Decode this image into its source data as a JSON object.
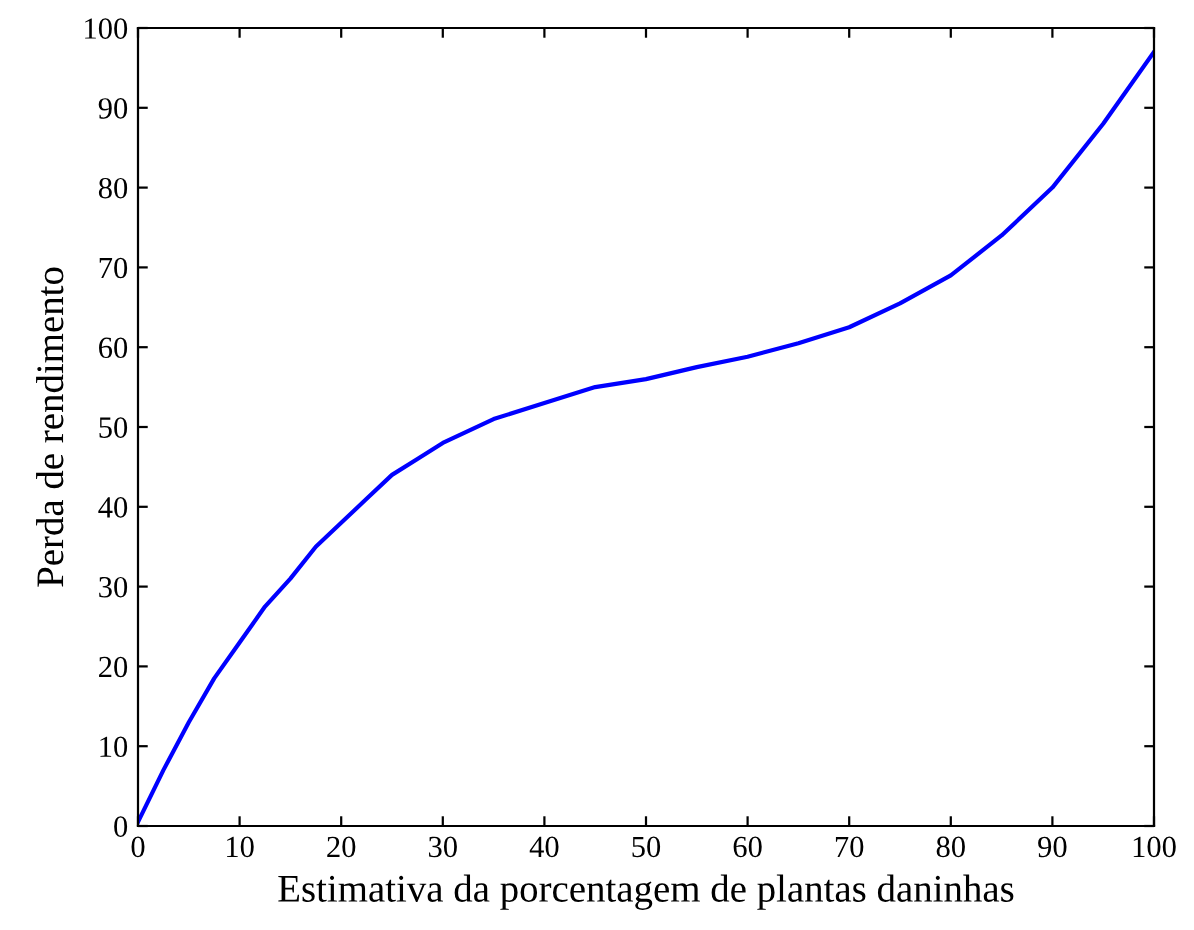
{
  "chart_data": {
    "type": "line",
    "xlabel": "Estimativa da porcentagem de plantas daninhas",
    "ylabel": "Perda de rendimento",
    "x": [
      0,
      2.5,
      5,
      7.5,
      10,
      12.5,
      15,
      17.5,
      20,
      22.5,
      25,
      27.5,
      30,
      35,
      40,
      45,
      50,
      55,
      60,
      65,
      70,
      75,
      80,
      85,
      90,
      95,
      100
    ],
    "series": [
      {
        "color": "#0000ff",
        "values": [
          0.5,
          7,
          13,
          18.5,
          23,
          27.5,
          31,
          35,
          38,
          41,
          44,
          46,
          48,
          51,
          53,
          55,
          56,
          57.5,
          58.8,
          60.5,
          62.5,
          65.5,
          69,
          74,
          80,
          88,
          97
        ]
      }
    ],
    "xlim": [
      0,
      100
    ],
    "ylim": [
      0,
      100
    ],
    "xticks": [
      0,
      10,
      20,
      30,
      40,
      50,
      60,
      70,
      80,
      90,
      100
    ],
    "yticks": [
      0,
      10,
      20,
      30,
      40,
      50,
      60,
      70,
      80,
      90,
      100
    ],
    "grid": false,
    "marker": "none",
    "line_style": "solid"
  }
}
